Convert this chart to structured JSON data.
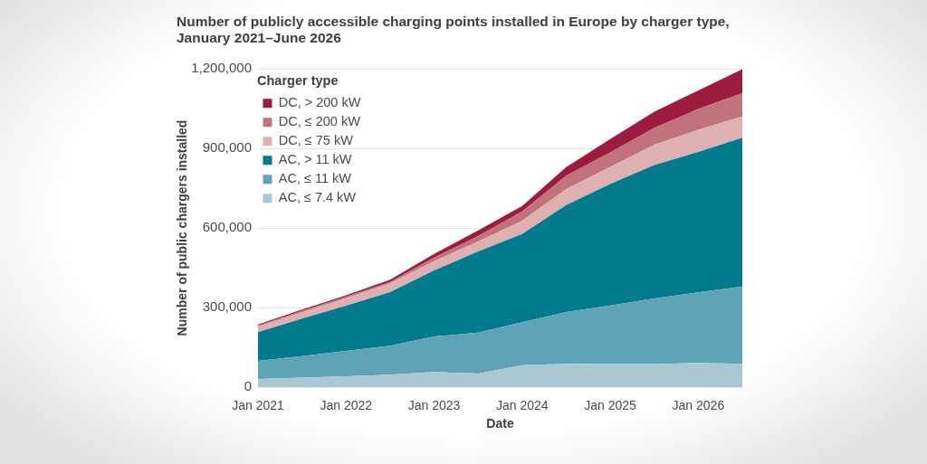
{
  "chart_data": {
    "type": "area",
    "title": "Number of publicly accessible charging points installed in Europe by charger type, January 2021–June 2026",
    "xlabel": "Date",
    "ylabel": "Number of public chargers installed",
    "legend_title": "Charger type",
    "x": [
      "2021-01",
      "2021-07",
      "2022-01",
      "2022-07",
      "2023-01",
      "2023-07",
      "2024-01",
      "2024-07",
      "2025-01",
      "2025-07",
      "2026-01",
      "2026-07"
    ],
    "series": [
      {
        "name": "AC, ≤ 7.4 kW",
        "color": "#abc7d4",
        "values": [
          31000,
          36000,
          41000,
          47000,
          57000,
          51000,
          83000,
          88000,
          87000,
          87000,
          91000,
          88000
        ]
      },
      {
        "name": "AC, ≤ 11 kW",
        "color": "#5ea3b6",
        "values": [
          68000,
          81000,
          95000,
          109000,
          134000,
          154000,
          162000,
          195000,
          221000,
          247000,
          266000,
          291000
        ]
      },
      {
        "name": "AC, > 11 kW",
        "color": "#007a8c",
        "values": [
          108000,
          141000,
          171000,
          202000,
          249000,
          306000,
          332000,
          403000,
          457000,
          503000,
          529000,
          561000
        ]
      },
      {
        "name": "DC, ≤ 75 kW",
        "color": "#deb0b1",
        "values": [
          21000,
          24000,
          28000,
          33000,
          35000,
          38000,
          50000,
          61000,
          65000,
          77000,
          84000,
          80000
        ]
      },
      {
        "name": "DC, ≤ 200 kW",
        "color": "#c0737b",
        "values": [
          4000,
          5000,
          6000,
          5000,
          13000,
          20000,
          35000,
          50000,
          55000,
          63000,
          78000,
          88000
        ]
      },
      {
        "name": "DC, > 200 kW",
        "color": "#9e1b40",
        "values": [
          4000,
          5000,
          5000,
          9000,
          14000,
          22000,
          21000,
          32000,
          50000,
          61000,
          70000,
          90000
        ]
      }
    ],
    "stacked": true,
    "xlim": [
      "2021-01",
      "2026-07"
    ],
    "xticks": [
      {
        "value": "2021-01",
        "label": "Jan 2021"
      },
      {
        "value": "2022-01",
        "label": "Jan 2022"
      },
      {
        "value": "2023-01",
        "label": "Jan 2023"
      },
      {
        "value": "2024-01",
        "label": "Jan 2024"
      },
      {
        "value": "2025-01",
        "label": "Jan 2025"
      },
      {
        "value": "2026-01",
        "label": "Jan 2026"
      }
    ],
    "ylim": [
      0,
      1200000
    ],
    "yticks": [
      0,
      {
        "value": 300000,
        "label": "300,000"
      },
      {
        "value": 600000,
        "label": "600,000"
      },
      {
        "value": 900000,
        "label": "900,000"
      },
      {
        "value": 1200000,
        "label": "1,200,000"
      }
    ],
    "grid": "y",
    "legend": "top left"
  }
}
